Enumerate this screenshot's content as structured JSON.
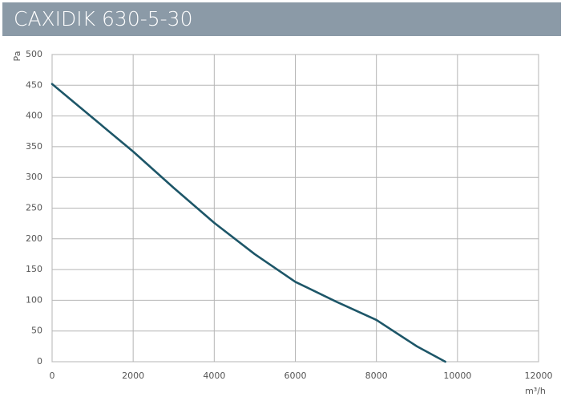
{
  "chart_data": {
    "type": "line",
    "title": "CAXIDIK 630-5-30",
    "y_label": "Pa",
    "x_label": "m³/h",
    "x": [
      0,
      1000,
      2000,
      3000,
      4000,
      5000,
      6000,
      7000,
      8000,
      9000,
      9700
    ],
    "values": [
      452,
      397,
      342,
      283,
      226,
      175,
      130,
      98,
      68,
      25,
      0
    ],
    "color": "#1d5668",
    "xlim": [
      0,
      12000
    ],
    "xticks": [
      0,
      2000,
      4000,
      6000,
      8000,
      10000,
      12000
    ],
    "ylim": [
      0,
      500
    ],
    "yticks": [
      0,
      50,
      100,
      150,
      200,
      250,
      300,
      350,
      400,
      450,
      500
    ],
    "grid": true
  }
}
